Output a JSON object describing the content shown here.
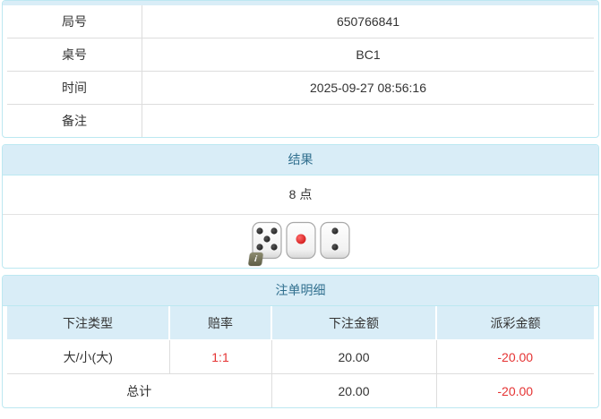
{
  "colors": {
    "panel_border": "#bce8f1",
    "heading_bg": "#d9edf7",
    "heading_text": "#31708f",
    "grid_border": "#dddddd",
    "body_text": "#333333",
    "negative_red": "#e53333",
    "info_badge_olive": "#6e6d52",
    "die_pip_black": "#1a1a1a",
    "die_pip_red": "#cc1111"
  },
  "info_table": {
    "rows": [
      {
        "label": "局号",
        "value": "650766841"
      },
      {
        "label": "桌号",
        "value": "BC1"
      },
      {
        "label": "时间",
        "value": "2025-09-27 08:56:16"
      },
      {
        "label": "备注",
        "value": ""
      }
    ]
  },
  "result_panel": {
    "title": "结果",
    "points": "8 点",
    "dice": [
      {
        "value": 5,
        "pip_color": "black"
      },
      {
        "value": 1,
        "pip_color": "red"
      },
      {
        "value": 2,
        "pip_color": "black"
      }
    ],
    "info_icon_glyph": "i"
  },
  "bets_panel": {
    "title": "注单明细",
    "columns": [
      "下注类型",
      "赔率",
      "下注金额",
      "派彩金额"
    ],
    "rows": [
      {
        "bet_type": "大/小(大)",
        "odds": "1:1",
        "bet_amount": "20.00",
        "payout": "-20.00"
      }
    ],
    "total": {
      "label": "总计",
      "bet_amount": "20.00",
      "payout": "-20.00"
    }
  }
}
